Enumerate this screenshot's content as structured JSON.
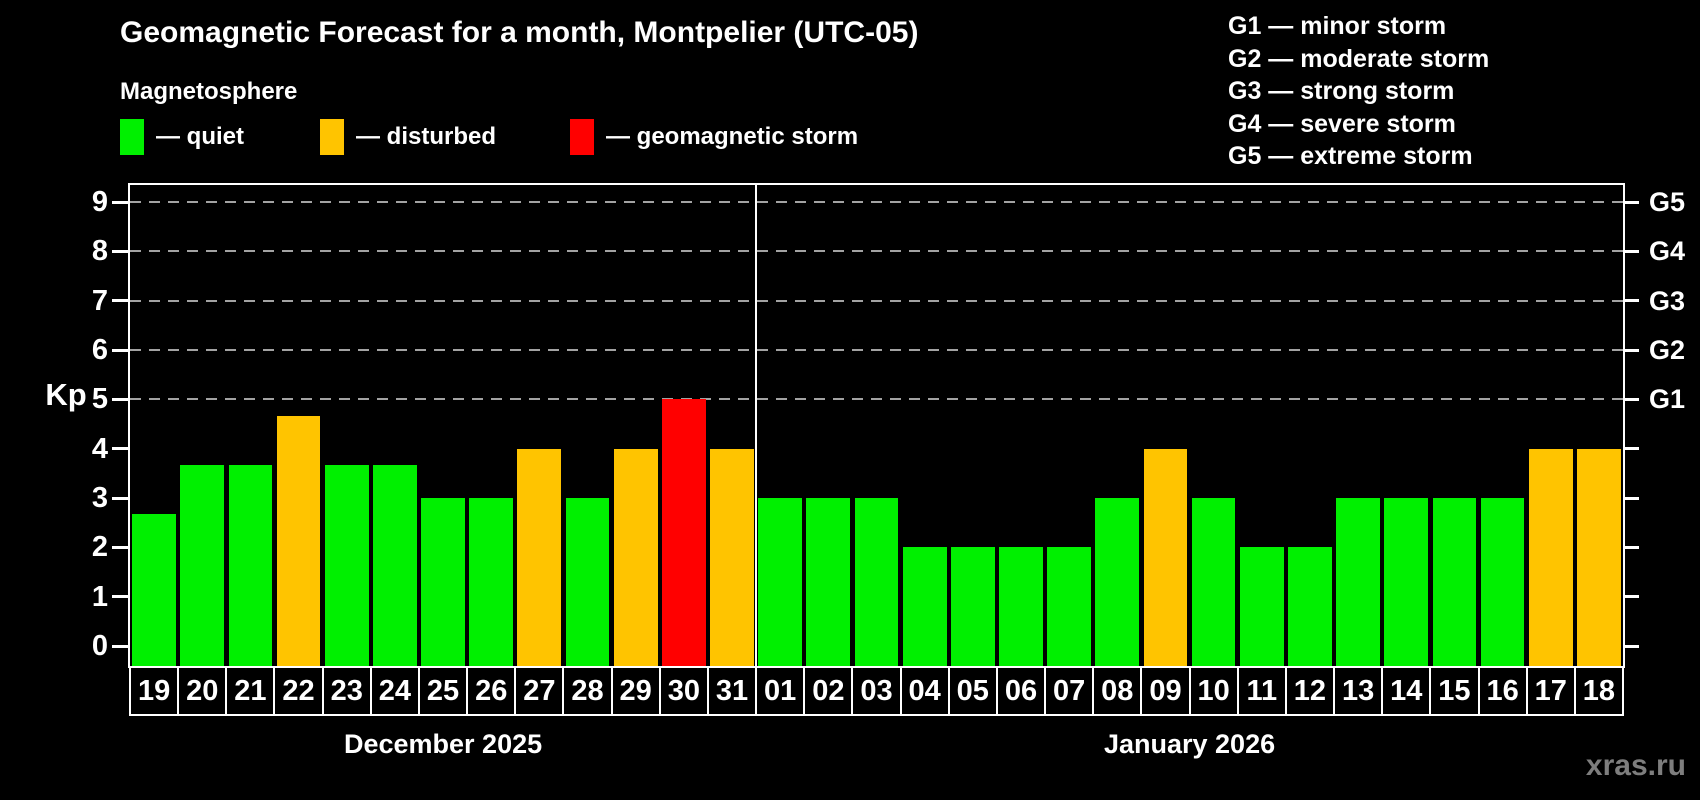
{
  "title": "Geomagnetic Forecast for a month, Montpelier (UTC-05)",
  "subtitle": "Magnetosphere",
  "watermark": "xras.ru",
  "legend": {
    "items": [
      {
        "key": "quiet",
        "label": "— quiet",
        "color": "#00F000"
      },
      {
        "key": "disturbed",
        "label": "— disturbed",
        "color": "#FFC400"
      },
      {
        "key": "storm",
        "label": "— geomagnetic storm",
        "color": "#FF0000"
      }
    ]
  },
  "g_legend": {
    "items": [
      "G1 — minor storm",
      "G2 — moderate storm",
      "G3 — strong storm",
      "G4 — severe storm",
      "G5 — extreme storm"
    ]
  },
  "chart_data": {
    "type": "bar",
    "title": "Geomagnetic Forecast for a month, Montpelier (UTC-05)",
    "subtitle": "Magnetosphere",
    "ylabel": "Kp",
    "ylim": [
      -0.4,
      9.4
    ],
    "yticks": [
      0,
      1,
      2,
      3,
      4,
      5,
      6,
      7,
      8,
      9
    ],
    "gridlines_kp": [
      5,
      6,
      7,
      8,
      9
    ],
    "grid": "dashed horizontal at Kp 5-9 only",
    "right_axis_labels": [
      {
        "kp": 5,
        "label": "G1"
      },
      {
        "kp": 6,
        "label": "G2"
      },
      {
        "kp": 7,
        "label": "G3"
      },
      {
        "kp": 8,
        "label": "G4"
      },
      {
        "kp": 9,
        "label": "G5"
      }
    ],
    "level_colors": {
      "quiet": "#00F000",
      "disturbed": "#FFC400",
      "storm": "#FF0000"
    },
    "months": [
      {
        "label": "December 2025",
        "bars": [
          {
            "day": "19",
            "kp": 2.67,
            "level": "quiet"
          },
          {
            "day": "20",
            "kp": 3.67,
            "level": "quiet"
          },
          {
            "day": "21",
            "kp": 3.67,
            "level": "quiet"
          },
          {
            "day": "22",
            "kp": 4.67,
            "level": "disturbed"
          },
          {
            "day": "23",
            "kp": 3.67,
            "level": "quiet"
          },
          {
            "day": "24",
            "kp": 3.67,
            "level": "quiet"
          },
          {
            "day": "25",
            "kp": 3.0,
            "level": "quiet"
          },
          {
            "day": "26",
            "kp": 3.0,
            "level": "quiet"
          },
          {
            "day": "27",
            "kp": 4.0,
            "level": "disturbed"
          },
          {
            "day": "28",
            "kp": 3.0,
            "level": "quiet"
          },
          {
            "day": "29",
            "kp": 4.0,
            "level": "disturbed"
          },
          {
            "day": "30",
            "kp": 5.0,
            "level": "storm"
          },
          {
            "day": "31",
            "kp": 4.0,
            "level": "disturbed"
          }
        ]
      },
      {
        "label": "January 2026",
        "bars": [
          {
            "day": "01",
            "kp": 3.0,
            "level": "quiet"
          },
          {
            "day": "02",
            "kp": 3.0,
            "level": "quiet"
          },
          {
            "day": "03",
            "kp": 3.0,
            "level": "quiet"
          },
          {
            "day": "04",
            "kp": 2.0,
            "level": "quiet"
          },
          {
            "day": "05",
            "kp": 2.0,
            "level": "quiet"
          },
          {
            "day": "06",
            "kp": 2.0,
            "level": "quiet"
          },
          {
            "day": "07",
            "kp": 2.0,
            "level": "quiet"
          },
          {
            "day": "08",
            "kp": 3.0,
            "level": "quiet"
          },
          {
            "day": "09",
            "kp": 4.0,
            "level": "disturbed"
          },
          {
            "day": "10",
            "kp": 3.0,
            "level": "quiet"
          },
          {
            "day": "11",
            "kp": 2.0,
            "level": "quiet"
          },
          {
            "day": "12",
            "kp": 2.0,
            "level": "quiet"
          },
          {
            "day": "13",
            "kp": 3.0,
            "level": "quiet"
          },
          {
            "day": "14",
            "kp": 3.0,
            "level": "quiet"
          },
          {
            "day": "15",
            "kp": 3.0,
            "level": "quiet"
          },
          {
            "day": "16",
            "kp": 3.0,
            "level": "quiet"
          },
          {
            "day": "17",
            "kp": 4.0,
            "level": "disturbed"
          },
          {
            "day": "18",
            "kp": 4.0,
            "level": "disturbed"
          }
        ]
      }
    ]
  }
}
